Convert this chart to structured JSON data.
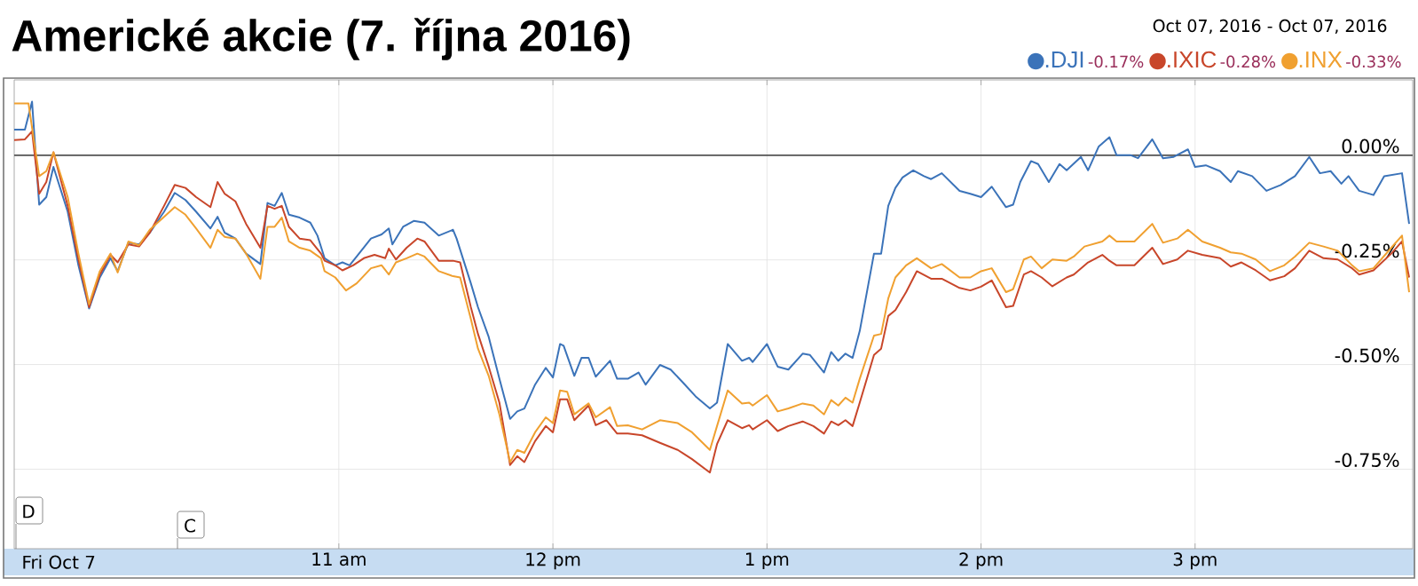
{
  "chart_data": {
    "type": "line",
    "title": "Americké akcie (7. října 2016)",
    "annotations": [
      "Oct 07, 2016  -  Oct 07, 2016",
      "-0.17%",
      "-0.28%",
      "-0.33%",
      "D",
      "C",
      "Fri Oct 7"
    ],
    "xlim": [
      "2016-10-07T09:29",
      "2016-10-07T16:01"
    ],
    "ylim": [
      -0.94,
      0.18
    ],
    "xticks": [
      {
        "value": "2016-10-07T11:00",
        "label": "11 am"
      },
      {
        "value": "2016-10-07T12:00",
        "label": "12 pm"
      },
      {
        "value": "2016-10-07T13:00",
        "label": "1 pm"
      },
      {
        "value": "2016-10-07T14:00",
        "label": "2 pm"
      },
      {
        "value": "2016-10-07T15:00",
        "label": "3 pm"
      }
    ],
    "yticks": [
      {
        "value": 0,
        "label": "0.00%"
      },
      {
        "value": -0.25,
        "label": "-0.25%"
      },
      {
        "value": -0.5,
        "label": "-0.50%"
      },
      {
        "value": -0.75,
        "label": "-0.75%"
      }
    ],
    "grid": true,
    "legend": "top right",
    "ref_lines": [
      {
        "axis": "y",
        "value": 0,
        "color": "#555555"
      }
    ],
    "series": [
      {
        "name": ".DJI",
        "color": "#3b73b9",
        "x": [
          "2016-10-07T09:29",
          "2016-10-07T09:32",
          "2016-10-07T09:34",
          "2016-10-07T09:36",
          "2016-10-07T09:38",
          "2016-10-07T09:40",
          "2016-10-07T09:44",
          "2016-10-07T09:47",
          "2016-10-07T09:50",
          "2016-10-07T09:53",
          "2016-10-07T09:56",
          "2016-10-07T09:58",
          "2016-10-07T10:01",
          "2016-10-07T10:04",
          "2016-10-07T10:07",
          "2016-10-07T10:11",
          "2016-10-07T10:14",
          "2016-10-07T10:17",
          "2016-10-07T10:20",
          "2016-10-07T10:24",
          "2016-10-07T10:26",
          "2016-10-07T10:28",
          "2016-10-07T10:31",
          "2016-10-07T10:34",
          "2016-10-07T10:38",
          "2016-10-07T10:40",
          "2016-10-07T10:42",
          "2016-10-07T10:44",
          "2016-10-07T10:46",
          "2016-10-07T10:49",
          "2016-10-07T10:52",
          "2016-10-07T10:54",
          "2016-10-07T10:56",
          "2016-10-07T10:59",
          "2016-10-07T11:01",
          "2016-10-07T11:03",
          "2016-10-07T11:05",
          "2016-10-07T11:09",
          "2016-10-07T11:12",
          "2016-10-07T11:14",
          "2016-10-07T11:15",
          "2016-10-07T11:18",
          "2016-10-07T11:21",
          "2016-10-07T11:24",
          "2016-10-07T11:28",
          "2016-10-07T11:32",
          "2016-10-07T11:33",
          "2016-10-07T11:37",
          "2016-10-07T11:39",
          "2016-10-07T11:42",
          "2016-10-07T11:45",
          "2016-10-07T11:48",
          "2016-10-07T11:50",
          "2016-10-07T11:52",
          "2016-10-07T11:55",
          "2016-10-07T11:58",
          "2016-10-07T12:00",
          "2016-10-07T12:02",
          "2016-10-07T12:03",
          "2016-10-07T12:06",
          "2016-10-07T12:08",
          "2016-10-07T12:10",
          "2016-10-07T12:12",
          "2016-10-07T12:16",
          "2016-10-07T12:18",
          "2016-10-07T12:21",
          "2016-10-07T12:24",
          "2016-10-07T12:26",
          "2016-10-07T12:30",
          "2016-10-07T12:33",
          "2016-10-07T12:37",
          "2016-10-07T12:40",
          "2016-10-07T12:44",
          "2016-10-07T12:46",
          "2016-10-07T12:49",
          "2016-10-07T12:53",
          "2016-10-07T12:55",
          "2016-10-07T12:56",
          "2016-10-07T13:00",
          "2016-10-07T13:03",
          "2016-10-07T13:06",
          "2016-10-07T13:10",
          "2016-10-07T13:12",
          "2016-10-07T13:16",
          "2016-10-07T13:18",
          "2016-10-07T13:20",
          "2016-10-07T13:22",
          "2016-10-07T13:24",
          "2016-10-07T13:26",
          "2016-10-07T13:30",
          "2016-10-07T13:32",
          "2016-10-07T13:34",
          "2016-10-07T13:36",
          "2016-10-07T13:38",
          "2016-10-07T13:41",
          "2016-10-07T13:44",
          "2016-10-07T13:46",
          "2016-10-07T13:49",
          "2016-10-07T13:54",
          "2016-10-07T13:57",
          "2016-10-07T14:00",
          "2016-10-07T14:03",
          "2016-10-07T14:07",
          "2016-10-07T14:09",
          "2016-10-07T14:11",
          "2016-10-07T14:14",
          "2016-10-07T14:16",
          "2016-10-07T14:19",
          "2016-10-07T14:22",
          "2016-10-07T14:24",
          "2016-10-07T14:28",
          "2016-10-07T14:30",
          "2016-10-07T14:33",
          "2016-10-07T14:36",
          "2016-10-07T14:38",
          "2016-10-07T14:42",
          "2016-10-07T14:44",
          "2016-10-07T14:48",
          "2016-10-07T14:51",
          "2016-10-07T14:54",
          "2016-10-07T14:58",
          "2016-10-07T15:00",
          "2016-10-07T15:03",
          "2016-10-07T15:07",
          "2016-10-07T15:10",
          "2016-10-07T15:12",
          "2016-10-07T15:16",
          "2016-10-07T15:20",
          "2016-10-07T15:24",
          "2016-10-07T15:28",
          "2016-10-07T15:32",
          "2016-10-07T15:35",
          "2016-10-07T15:38",
          "2016-10-07T15:41",
          "2016-10-07T15:43",
          "2016-10-07T15:46",
          "2016-10-07T15:50",
          "2016-10-07T15:53",
          "2016-10-07T15:58",
          "2016-10-07T16:00"
        ],
        "values": [
          0.061,
          0.061,
          0.128,
          -0.118,
          -0.1,
          -0.028,
          -0.135,
          -0.263,
          -0.366,
          -0.292,
          -0.246,
          -0.277,
          -0.209,
          -0.213,
          -0.185,
          -0.135,
          -0.09,
          -0.107,
          -0.135,
          -0.175,
          -0.147,
          -0.185,
          -0.199,
          -0.235,
          -0.26,
          -0.114,
          -0.121,
          -0.09,
          -0.142,
          -0.149,
          -0.161,
          -0.192,
          -0.246,
          -0.263,
          -0.256,
          -0.263,
          -0.242,
          -0.199,
          -0.189,
          -0.175,
          -0.213,
          -0.171,
          -0.157,
          -0.161,
          -0.192,
          -0.178,
          -0.199,
          -0.306,
          -0.363,
          -0.434,
          -0.534,
          -0.63,
          -0.612,
          -0.605,
          -0.548,
          -0.508,
          -0.531,
          -0.451,
          -0.455,
          -0.527,
          -0.484,
          -0.484,
          -0.529,
          -0.491,
          -0.534,
          -0.534,
          -0.519,
          -0.548,
          -0.501,
          -0.512,
          -0.548,
          -0.576,
          -0.605,
          -0.591,
          -0.451,
          -0.491,
          -0.484,
          -0.494,
          -0.451,
          -0.505,
          -0.512,
          -0.474,
          -0.477,
          -0.519,
          -0.47,
          -0.491,
          -0.474,
          -0.484,
          -0.42,
          -0.235,
          -0.235,
          -0.121,
          -0.078,
          -0.053,
          -0.036,
          -0.05,
          -0.057,
          -0.043,
          -0.085,
          -0.092,
          -0.1,
          -0.075,
          -0.124,
          -0.118,
          -0.064,
          -0.014,
          -0.021,
          -0.064,
          -0.021,
          -0.036,
          -0.004,
          -0.036,
          0.021,
          0.043,
          0,
          0,
          -0.007,
          0.038,
          -0.007,
          -0.004,
          0.014,
          -0.028,
          -0.024,
          -0.038,
          -0.064,
          -0.038,
          -0.05,
          -0.085,
          -0.071,
          -0.05,
          -0.004,
          -0.043,
          -0.038,
          -0.068,
          -0.05,
          -0.085,
          -0.095,
          -0.05,
          -0.043,
          -0.164
        ]
      },
      {
        "name": ".IXIC",
        "color": "#c8462a",
        "x": [
          "2016-10-07T09:29",
          "2016-10-07T09:32",
          "2016-10-07T09:34",
          "2016-10-07T09:36",
          "2016-10-07T09:38",
          "2016-10-07T09:40",
          "2016-10-07T09:44",
          "2016-10-07T09:47",
          "2016-10-07T09:50",
          "2016-10-07T09:53",
          "2016-10-07T09:56",
          "2016-10-07T09:58",
          "2016-10-07T10:01",
          "2016-10-07T10:04",
          "2016-10-07T10:07",
          "2016-10-07T10:11",
          "2016-10-07T10:14",
          "2016-10-07T10:17",
          "2016-10-07T10:20",
          "2016-10-07T10:24",
          "2016-10-07T10:26",
          "2016-10-07T10:28",
          "2016-10-07T10:31",
          "2016-10-07T10:34",
          "2016-10-07T10:38",
          "2016-10-07T10:40",
          "2016-10-07T10:42",
          "2016-10-07T10:44",
          "2016-10-07T10:46",
          "2016-10-07T10:49",
          "2016-10-07T10:52",
          "2016-10-07T10:55",
          "2016-10-07T10:56",
          "2016-10-07T10:59",
          "2016-10-07T11:01",
          "2016-10-07T11:04",
          "2016-10-07T11:07",
          "2016-10-07T11:10",
          "2016-10-07T11:13",
          "2016-10-07T11:14",
          "2016-10-07T11:16",
          "2016-10-07T11:19",
          "2016-10-07T11:22",
          "2016-10-07T11:24",
          "2016-10-07T11:28",
          "2016-10-07T11:32",
          "2016-10-07T11:34",
          "2016-10-07T11:37",
          "2016-10-07T11:39",
          "2016-10-07T11:42",
          "2016-10-07T11:45",
          "2016-10-07T11:48",
          "2016-10-07T11:50",
          "2016-10-07T11:52",
          "2016-10-07T11:55",
          "2016-10-07T11:58",
          "2016-10-07T12:00",
          "2016-10-07T12:02",
          "2016-10-07T12:04",
          "2016-10-07T12:06",
          "2016-10-07T12:10",
          "2016-10-07T12:12",
          "2016-10-07T12:15",
          "2016-10-07T12:18",
          "2016-10-07T12:21",
          "2016-10-07T12:25",
          "2016-10-07T12:30",
          "2016-10-07T12:35",
          "2016-10-07T12:39",
          "2016-10-07T12:44",
          "2016-10-07T12:46",
          "2016-10-07T12:49",
          "2016-10-07T12:53",
          "2016-10-07T12:55",
          "2016-10-07T12:56",
          "2016-10-07T13:00",
          "2016-10-07T13:03",
          "2016-10-07T13:06",
          "2016-10-07T13:10",
          "2016-10-07T13:13",
          "2016-10-07T13:16",
          "2016-10-07T13:18",
          "2016-10-07T13:20",
          "2016-10-07T13:22",
          "2016-10-07T13:24",
          "2016-10-07T13:26",
          "2016-10-07T13:30",
          "2016-10-07T13:32",
          "2016-10-07T13:34",
          "2016-10-07T13:36",
          "2016-10-07T13:39",
          "2016-10-07T13:42",
          "2016-10-07T13:46",
          "2016-10-07T13:49",
          "2016-10-07T13:54",
          "2016-10-07T13:57",
          "2016-10-07T14:00",
          "2016-10-07T14:03",
          "2016-10-07T14:07",
          "2016-10-07T14:09",
          "2016-10-07T14:12",
          "2016-10-07T14:14",
          "2016-10-07T14:17",
          "2016-10-07T14:20",
          "2016-10-07T14:24",
          "2016-10-07T14:26",
          "2016-10-07T14:30",
          "2016-10-07T14:34",
          "2016-10-07T14:36",
          "2016-10-07T14:38",
          "2016-10-07T14:43",
          "2016-10-07T14:48",
          "2016-10-07T14:51",
          "2016-10-07T14:55",
          "2016-10-07T14:58",
          "2016-10-07T15:02",
          "2016-10-07T15:07",
          "2016-10-07T15:10",
          "2016-10-07T15:13",
          "2016-10-07T15:17",
          "2016-10-07T15:21",
          "2016-10-07T15:25",
          "2016-10-07T15:28",
          "2016-10-07T15:32",
          "2016-10-07T15:36",
          "2016-10-07T15:40",
          "2016-10-07T15:44",
          "2016-10-07T15:46",
          "2016-10-07T15:50",
          "2016-10-07T15:55",
          "2016-10-07T15:58",
          "2016-10-07T16:00"
        ],
        "values": [
          0.036,
          0.038,
          0.057,
          -0.092,
          -0.064,
          0.007,
          -0.121,
          -0.249,
          -0.363,
          -0.285,
          -0.238,
          -0.256,
          -0.213,
          -0.218,
          -0.185,
          -0.121,
          -0.071,
          -0.078,
          -0.1,
          -0.124,
          -0.064,
          -0.092,
          -0.11,
          -0.164,
          -0.221,
          -0.121,
          -0.128,
          -0.121,
          -0.171,
          -0.199,
          -0.203,
          -0.235,
          -0.252,
          -0.263,
          -0.275,
          -0.263,
          -0.246,
          -0.238,
          -0.246,
          -0.223,
          -0.249,
          -0.221,
          -0.199,
          -0.206,
          -0.252,
          -0.252,
          -0.256,
          -0.363,
          -0.427,
          -0.505,
          -0.591,
          -0.74,
          -0.719,
          -0.733,
          -0.683,
          -0.647,
          -0.662,
          -0.583,
          -0.583,
          -0.633,
          -0.598,
          -0.645,
          -0.633,
          -0.665,
          -0.665,
          -0.669,
          -0.687,
          -0.704,
          -0.726,
          -0.758,
          -0.69,
          -0.633,
          -0.652,
          -0.645,
          -0.655,
          -0.633,
          -0.659,
          -0.647,
          -0.636,
          -0.647,
          -0.665,
          -0.636,
          -0.645,
          -0.633,
          -0.647,
          -0.591,
          -0.477,
          -0.462,
          -0.384,
          -0.37,
          -0.327,
          -0.277,
          -0.295,
          -0.295,
          -0.317,
          -0.323,
          -0.314,
          -0.299,
          -0.363,
          -0.36,
          -0.285,
          -0.277,
          -0.292,
          -0.313,
          -0.292,
          -0.285,
          -0.256,
          -0.238,
          -0.252,
          -0.263,
          -0.263,
          -0.221,
          -0.26,
          -0.249,
          -0.228,
          -0.238,
          -0.246,
          -0.266,
          -0.256,
          -0.275,
          -0.299,
          -0.289,
          -0.27,
          -0.228,
          -0.246,
          -0.249,
          -0.27,
          -0.285,
          -0.275,
          -0.235,
          -0.206,
          -0.292
        ]
      },
      {
        "name": ".INX",
        "color": "#f0a030",
        "x": [
          "2016-10-07T09:29",
          "2016-10-07T09:33",
          "2016-10-07T09:36",
          "2016-10-07T09:38",
          "2016-10-07T09:40",
          "2016-10-07T09:44",
          "2016-10-07T09:47",
          "2016-10-07T09:50",
          "2016-10-07T09:53",
          "2016-10-07T09:56",
          "2016-10-07T09:58",
          "2016-10-07T10:01",
          "2016-10-07T10:04",
          "2016-10-07T10:07",
          "2016-10-07T10:11",
          "2016-10-07T10:14",
          "2016-10-07T10:17",
          "2016-10-07T10:20",
          "2016-10-07T10:24",
          "2016-10-07T10:26",
          "2016-10-07T10:28",
          "2016-10-07T10:31",
          "2016-10-07T10:34",
          "2016-10-07T10:38",
          "2016-10-07T10:40",
          "2016-10-07T10:42",
          "2016-10-07T10:44",
          "2016-10-07T10:46",
          "2016-10-07T10:49",
          "2016-10-07T10:52",
          "2016-10-07T10:55",
          "2016-10-07T10:56",
          "2016-10-07T10:59",
          "2016-10-07T11:02",
          "2016-10-07T11:05",
          "2016-10-07T11:09",
          "2016-10-07T11:12",
          "2016-10-07T11:14",
          "2016-10-07T11:16",
          "2016-10-07T11:19",
          "2016-10-07T11:22",
          "2016-10-07T11:24",
          "2016-10-07T11:28",
          "2016-10-07T11:32",
          "2016-10-07T11:34",
          "2016-10-07T11:37",
          "2016-10-07T11:39",
          "2016-10-07T11:42",
          "2016-10-07T11:45",
          "2016-10-07T11:48",
          "2016-10-07T11:50",
          "2016-10-07T11:52",
          "2016-10-07T11:55",
          "2016-10-07T11:58",
          "2016-10-07T12:00",
          "2016-10-07T12:02",
          "2016-10-07T12:04",
          "2016-10-07T12:06",
          "2016-10-07T12:10",
          "2016-10-07T12:12",
          "2016-10-07T12:16",
          "2016-10-07T12:18",
          "2016-10-07T12:21",
          "2016-10-07T12:25",
          "2016-10-07T12:30",
          "2016-10-07T12:35",
          "2016-10-07T12:39",
          "2016-10-07T12:44",
          "2016-10-07T12:46",
          "2016-10-07T12:49",
          "2016-10-07T12:53",
          "2016-10-07T12:55",
          "2016-10-07T12:56",
          "2016-10-07T13:00",
          "2016-10-07T13:03",
          "2016-10-07T13:06",
          "2016-10-07T13:10",
          "2016-10-07T13:13",
          "2016-10-07T13:16",
          "2016-10-07T13:18",
          "2016-10-07T13:20",
          "2016-10-07T13:22",
          "2016-10-07T13:24",
          "2016-10-07T13:26",
          "2016-10-07T13:30",
          "2016-10-07T13:32",
          "2016-10-07T13:34",
          "2016-10-07T13:36",
          "2016-10-07T13:39",
          "2016-10-07T13:42",
          "2016-10-07T13:46",
          "2016-10-07T13:49",
          "2016-10-07T13:54",
          "2016-10-07T13:57",
          "2016-10-07T14:00",
          "2016-10-07T14:03",
          "2016-10-07T14:07",
          "2016-10-07T14:09",
          "2016-10-07T14:12",
          "2016-10-07T14:14",
          "2016-10-07T14:17",
          "2016-10-07T14:20",
          "2016-10-07T14:24",
          "2016-10-07T14:26",
          "2016-10-07T14:29",
          "2016-10-07T14:34",
          "2016-10-07T14:36",
          "2016-10-07T14:38",
          "2016-10-07T14:43",
          "2016-10-07T14:48",
          "2016-10-07T14:51",
          "2016-10-07T14:55",
          "2016-10-07T14:58",
          "2016-10-07T15:02",
          "2016-10-07T15:07",
          "2016-10-07T15:10",
          "2016-10-07T15:13",
          "2016-10-07T15:17",
          "2016-10-07T15:21",
          "2016-10-07T15:25",
          "2016-10-07T15:28",
          "2016-10-07T15:32",
          "2016-10-07T15:36",
          "2016-10-07T15:40",
          "2016-10-07T15:44",
          "2016-10-07T15:46",
          "2016-10-07T15:50",
          "2016-10-07T15:55",
          "2016-10-07T15:58",
          "2016-10-07T16:00"
        ],
        "values": [
          0.124,
          0.124,
          -0.05,
          -0.038,
          0.007,
          -0.1,
          -0.235,
          -0.356,
          -0.277,
          -0.235,
          -0.28,
          -0.206,
          -0.215,
          -0.178,
          -0.147,
          -0.124,
          -0.142,
          -0.175,
          -0.221,
          -0.178,
          -0.195,
          -0.199,
          -0.235,
          -0.295,
          -0.171,
          -0.171,
          -0.149,
          -0.206,
          -0.221,
          -0.228,
          -0.246,
          -0.277,
          -0.292,
          -0.323,
          -0.306,
          -0.27,
          -0.263,
          -0.285,
          -0.256,
          -0.246,
          -0.235,
          -0.242,
          -0.277,
          -0.289,
          -0.292,
          -0.391,
          -0.462,
          -0.527,
          -0.619,
          -0.733,
          -0.704,
          -0.711,
          -0.662,
          -0.626,
          -0.64,
          -0.562,
          -0.565,
          -0.619,
          -0.593,
          -0.626,
          -0.602,
          -0.647,
          -0.645,
          -0.655,
          -0.633,
          -0.64,
          -0.662,
          -0.704,
          -0.647,
          -0.562,
          -0.593,
          -0.591,
          -0.598,
          -0.573,
          -0.612,
          -0.605,
          -0.593,
          -0.598,
          -0.619,
          -0.585,
          -0.598,
          -0.579,
          -0.591,
          -0.534,
          -0.431,
          -0.427,
          -0.342,
          -0.292,
          -0.263,
          -0.246,
          -0.27,
          -0.26,
          -0.292,
          -0.292,
          -0.277,
          -0.27,
          -0.327,
          -0.32,
          -0.249,
          -0.242,
          -0.27,
          -0.249,
          -0.252,
          -0.242,
          -0.218,
          -0.206,
          -0.192,
          -0.206,
          -0.206,
          -0.164,
          -0.209,
          -0.199,
          -0.178,
          -0.206,
          -0.221,
          -0.232,
          -0.235,
          -0.249,
          -0.277,
          -0.263,
          -0.242,
          -0.209,
          -0.218,
          -0.228,
          -0.263,
          -0.277,
          -0.27,
          -0.221,
          -0.192,
          -0.327
        ]
      }
    ]
  }
}
